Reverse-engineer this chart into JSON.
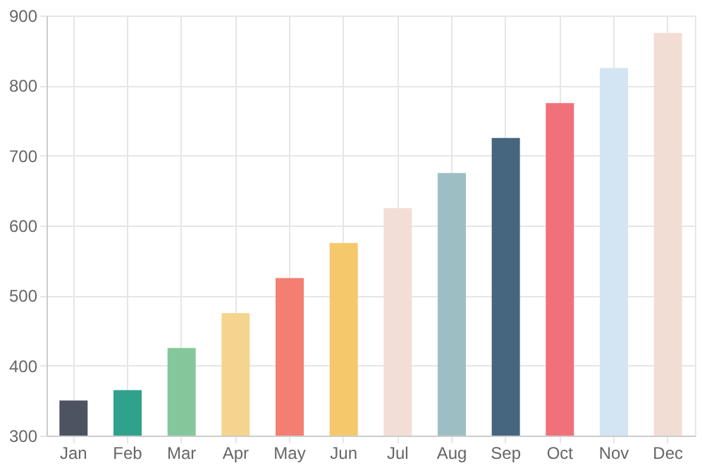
{
  "chart_data": {
    "type": "bar",
    "categories": [
      "Jan",
      "Feb",
      "Mar",
      "Apr",
      "May",
      "Jun",
      "Jul",
      "Aug",
      "Sep",
      "Oct",
      "Nov",
      "Dec"
    ],
    "values": [
      350,
      365,
      425,
      475,
      525,
      575,
      625,
      675,
      725,
      775,
      825,
      875
    ],
    "colors": [
      "#4d5360",
      "#30a18b",
      "#85c79a",
      "#f5d48e",
      "#f37e71",
      "#f6c86c",
      "#f3ded7",
      "#9dbec3",
      "#46657f",
      "#f07179",
      "#d3e4f2",
      "#f2ddd5"
    ],
    "ylim": [
      300,
      900
    ],
    "yticks": [
      300,
      400,
      500,
      600,
      700,
      800,
      900
    ],
    "grid": true
  }
}
